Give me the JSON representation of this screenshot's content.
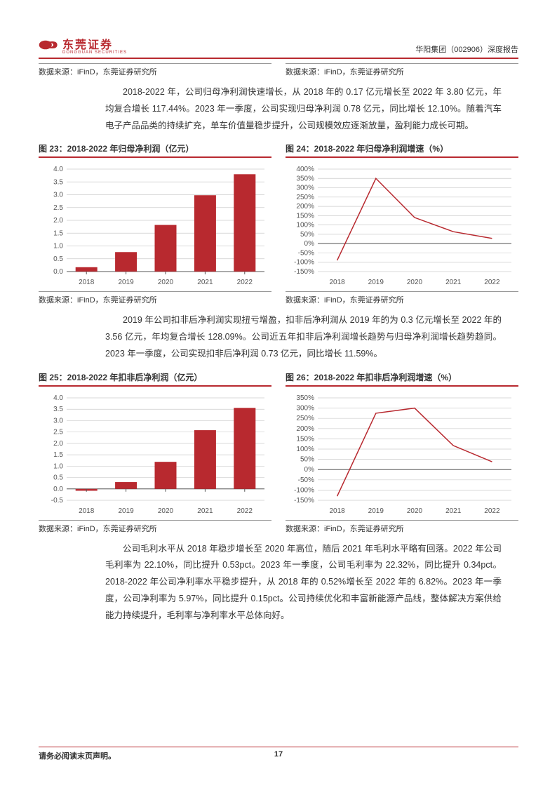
{
  "header": {
    "logo_text": "东莞证券",
    "logo_sub": "DONGGUAN SECURITIES",
    "report_title": "华阳集团（002906）深度报告"
  },
  "top_sources": {
    "left": "数据来源：iFinD，东莞证券研究所",
    "right": "数据来源：iFinD，东莞证券研究所"
  },
  "para1": "2018-2022 年，公司归母净利润快速增长，从 2018 年的 0.17 亿元增长至 2022 年 3.80 亿元，年均复合增长 117.44%。2023 年一季度，公司实现归母净利润 0.78 亿元，同比增长 12.10%。随着汽车电子产品品类的持续扩充，单车价值量稳步提升，公司规模效应逐渐放量，盈利能力成长可期。",
  "chart23": {
    "title": "图 23：2018-2022 年归母净利润（亿元）",
    "type": "bar",
    "categories": [
      "2018",
      "2019",
      "2020",
      "2021",
      "2022"
    ],
    "values": [
      0.17,
      0.76,
      1.82,
      2.98,
      3.8
    ],
    "ylim": [
      0,
      4.0
    ],
    "ytick_step": 0.5,
    "bar_color": "#b8292f",
    "grid_color": "#cccccc",
    "axis_color": "#555555",
    "label_fontsize": 10,
    "bar_width": 0.55
  },
  "chart24": {
    "title": "图 24：2018-2022 年归母净利润增速（%）",
    "type": "line",
    "categories": [
      "2018",
      "2019",
      "2020",
      "2021",
      "2022"
    ],
    "values": [
      -90,
      350,
      140,
      64,
      28
    ],
    "ylim": [
      -150,
      400
    ],
    "ytick_step": 50,
    "line_color": "#b8292f",
    "grid_color": "#cccccc",
    "axis_color": "#555555",
    "label_fontsize": 10,
    "line_width": 1.5
  },
  "sources_row2": {
    "left": "数据来源：iFinD，东莞证券研究所",
    "right": "数据来源：iFinD，东莞证券研究所"
  },
  "para2": "2019 年公司扣非后净利润实现扭亏增盈，扣非后净利润从 2019 年的为 0.3 亿元增长至 2022 年的 3.56 亿元，年均复合增长 128.09%。公司近五年扣非后净利润增长趋势与归母净利润增长趋势趋同。2023 年一季度，公司实现扣非后净利润 0.73 亿元，同比增长 11.59%。",
  "chart25": {
    "title": "图 25：2018-2022 年扣非后净利润（亿元）",
    "type": "bar",
    "categories": [
      "2018",
      "2019",
      "2020",
      "2021",
      "2022"
    ],
    "values": [
      -0.08,
      0.3,
      1.19,
      2.58,
      3.56
    ],
    "ylim": [
      -0.5,
      4.0
    ],
    "ytick_step": 0.5,
    "bar_color": "#b8292f",
    "grid_color": "#cccccc",
    "axis_color": "#555555",
    "label_fontsize": 10,
    "bar_width": 0.55
  },
  "chart26": {
    "title": "图 26：2018-2022 年扣非后净利润增速（%）",
    "type": "line",
    "categories": [
      "2018",
      "2019",
      "2020",
      "2021",
      "2022"
    ],
    "values": [
      -130,
      275,
      300,
      117,
      38
    ],
    "ylim": [
      -150,
      350
    ],
    "ytick_step": 50,
    "line_color": "#b8292f",
    "grid_color": "#cccccc",
    "axis_color": "#555555",
    "label_fontsize": 10,
    "line_width": 1.5
  },
  "sources_row3": {
    "left": "数据来源：iFinD，东莞证券研究所",
    "right": "数据来源：iFinD，东莞证券研究所"
  },
  "para3": "公司毛利水平从 2018 年稳步增长至 2020 年高位，随后 2021 年毛利水平略有回落。2022 年公司毛利率为 22.10%，同比提升 0.53pct。2023 年一季度，公司毛利率为 22.32%，同比提升 0.34pct。2018-2022 年公司净利率水平稳步提升，从 2018 年的 0.52%增长至 2022 年的 6.82%。2023 年一季度，公司净利率为 5.97%，同比提升 0.15pct。公司持续优化和丰富新能源产品线，整体解决方案供给能力持续提升，毛利率与净利率水平总体向好。",
  "footer": {
    "disclaimer": "请务必阅读末页声明。",
    "page": "17"
  },
  "colors": {
    "brand": "#b8292f"
  }
}
